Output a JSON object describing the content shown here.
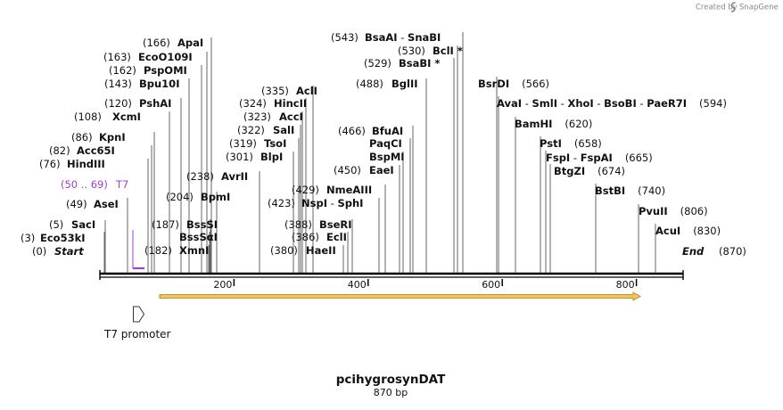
{
  "credit": {
    "text": "Created by",
    "brand": "SnapGene"
  },
  "map": {
    "title": "pcihygrosynDAT",
    "length_label": "870 bp",
    "start_label": "Start",
    "start_pos": "(0)",
    "end_label": "End",
    "end_pos": "(870)"
  },
  "axis": {
    "ticks": [
      200,
      400,
      600,
      800
    ]
  },
  "sites": [
    {
      "name": "Eco53kI",
      "pos": "(3)",
      "side": "right",
      "star": false
    },
    {
      "name": "SacI",
      "pos": "(5)",
      "side": "right",
      "star": false
    },
    {
      "name": "AseI",
      "pos": "(49)",
      "side": "right",
      "star": false
    },
    {
      "name": "HindIII",
      "pos": "(76)",
      "side": "right",
      "star": false
    },
    {
      "name": "Acc65I",
      "pos": "(82)",
      "side": "right",
      "star": false
    },
    {
      "name": "KpnI",
      "pos": "(86)",
      "side": "right",
      "star": false
    },
    {
      "name": "XcmI",
      "pos": "(108)",
      "side": "right",
      "star": false
    },
    {
      "name": "PshAI",
      "pos": "(120)",
      "side": "right",
      "star": false
    },
    {
      "name": "Bpu10I",
      "pos": "(143)",
      "side": "right",
      "star": false
    },
    {
      "name": "PspOMI",
      "pos": "(162)",
      "side": "right",
      "star": false
    },
    {
      "name": "EcoO109I",
      "pos": "(163)",
      "side": "right",
      "star": false
    },
    {
      "name": "ApaI",
      "pos": "(166)",
      "side": "right",
      "star": false
    },
    {
      "name": "XmnI",
      "pos": "(182)",
      "side": "right",
      "star": false
    },
    {
      "name": "BssSαI",
      "pos": "",
      "side": "right",
      "star": false
    },
    {
      "name": "BssSI",
      "pos": "(187)",
      "side": "right",
      "star": false
    },
    {
      "name": "BpmI",
      "pos": "(204)",
      "side": "right",
      "star": false
    },
    {
      "name": "AvrII",
      "pos": "(238)",
      "side": "right",
      "star": false
    },
    {
      "name": "BlpI",
      "pos": "(301)",
      "side": "right",
      "star": false
    },
    {
      "name": "TsoI",
      "pos": "(319)",
      "side": "right",
      "star": false
    },
    {
      "name": "SalI",
      "pos": "(322)",
      "side": "right",
      "star": false
    },
    {
      "name": "AccI",
      "pos": "(323)",
      "side": "right",
      "star": false
    },
    {
      "name": "HincII",
      "pos": "(324)",
      "side": "right",
      "star": false
    },
    {
      "name": "AclI",
      "pos": "(335)",
      "side": "right",
      "star": false
    },
    {
      "name": "HaeII",
      "pos": "(380)",
      "side": "right",
      "star": false
    },
    {
      "name": "EclI",
      "pos": "(386)",
      "side": "right",
      "star": false
    },
    {
      "name": "BseRI",
      "pos": "(388)",
      "side": "right",
      "star": false
    },
    {
      "name": "NspI - SphI",
      "pos": "(423)",
      "side": "right",
      "star": false
    },
    {
      "name": "NmeAIII",
      "pos": "(429)",
      "side": "right",
      "star": false
    },
    {
      "name": "EaeI",
      "pos": "(450)",
      "side": "right",
      "star": false
    },
    {
      "name": "BspMI",
      "pos": "",
      "side": "right",
      "star": false
    },
    {
      "name": "PaqCI",
      "pos": "",
      "side": "right",
      "star": false
    },
    {
      "name": "BfuAI",
      "pos": "(466)",
      "side": "right",
      "star": false
    },
    {
      "name": "BglII",
      "pos": "(488)",
      "side": "right",
      "star": false
    },
    {
      "name": "BsaBI",
      "pos": "(529)",
      "side": "right",
      "star": true
    },
    {
      "name": "BclI",
      "pos": "(530)",
      "side": "right",
      "star": true
    },
    {
      "name": "BsaAI - SnaBI",
      "pos": "(543)",
      "side": "right",
      "star": false
    },
    {
      "name": "BsrDI",
      "pos": "(566)",
      "side": "left",
      "star": false
    },
    {
      "name": "AvaI - SmlI - XhoI - BsoBI - PaeR7I",
      "pos": "(594)",
      "side": "left",
      "star": false
    },
    {
      "name": "BamHI",
      "pos": "(620)",
      "side": "left",
      "star": false
    },
    {
      "name": "PstI",
      "pos": "(658)",
      "side": "left",
      "star": false
    },
    {
      "name": "FspI - FspAI",
      "pos": "(665)",
      "side": "left",
      "star": false
    },
    {
      "name": "BtgZI",
      "pos": "(674)",
      "side": "left",
      "star": false
    },
    {
      "name": "BstBI",
      "pos": "(740)",
      "side": "left",
      "star": false
    },
    {
      "name": "PvuII",
      "pos": "(806)",
      "side": "left",
      "star": false
    },
    {
      "name": "AcuI",
      "pos": "(830)",
      "side": "left",
      "star": false
    }
  ],
  "features": {
    "t7_label": "T7",
    "t7_range": "(50 .. 69)",
    "t7_promoter_label": "T7 promoter"
  },
  "colors": {
    "t7_label": "#a040d0",
    "orf_fill": "#f4c45c",
    "orf_stroke": "#b07a10",
    "backbone": "#000000",
    "leader_line": "#555555"
  }
}
